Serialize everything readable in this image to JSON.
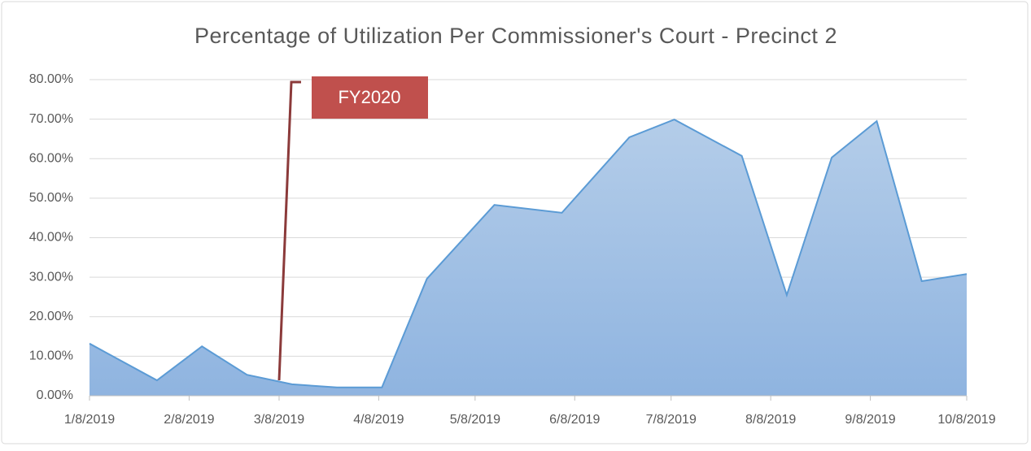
{
  "chart_data": {
    "type": "area",
    "title": "Percentage of Utilization Per Commissioner's Court - Precinct 2",
    "annotation": "FY2020",
    "x": [
      "2019-01-08",
      "2019-01-29",
      "2019-02-12",
      "2019-02-26",
      "2019-03-12",
      "2019-03-26",
      "2019-04-09",
      "2019-04-23",
      "2019-05-14",
      "2019-06-04",
      "2019-06-25",
      "2019-07-09",
      "2019-07-30",
      "2019-08-13",
      "2019-08-27",
      "2019-09-10",
      "2019-09-24",
      "2019-10-08"
    ],
    "values": [
      13.2,
      3.9,
      12.5,
      5.3,
      2.9,
      2.1,
      2.1,
      29.6,
      48.3,
      46.3,
      65.4,
      69.9,
      60.7,
      25.5,
      60.3,
      69.5,
      29.0,
      30.8
    ],
    "color": "#5b9bd5",
    "xlim": [
      "2019-01-08",
      "2019-10-08"
    ],
    "xticks": [
      {
        "value": "2019-01-08",
        "label": "1/8/2019"
      },
      {
        "value": "2019-02-08",
        "label": "2/8/2019"
      },
      {
        "value": "2019-03-08",
        "label": "3/8/2019"
      },
      {
        "value": "2019-04-08",
        "label": "4/8/2019"
      },
      {
        "value": "2019-05-08",
        "label": "5/8/2019"
      },
      {
        "value": "2019-06-08",
        "label": "6/8/2019"
      },
      {
        "value": "2019-07-08",
        "label": "7/8/2019"
      },
      {
        "value": "2019-08-08",
        "label": "8/8/2019"
      },
      {
        "value": "2019-09-08",
        "label": "9/8/2019"
      },
      {
        "value": "2019-10-08",
        "label": "10/8/2019"
      }
    ],
    "ylim": [
      0,
      80
    ],
    "yticks": [
      {
        "value": 0,
        "label": "0.00%"
      },
      {
        "value": 10,
        "label": "10.00%"
      },
      {
        "value": 20,
        "label": "20.00%"
      },
      {
        "value": 30,
        "label": "30.00%"
      },
      {
        "value": 40,
        "label": "40.00%"
      },
      {
        "value": 50,
        "label": "50.00%"
      },
      {
        "value": 60,
        "label": "60.00%"
      },
      {
        "value": 70,
        "label": "70.00%"
      },
      {
        "value": 80,
        "label": "80.00%"
      }
    ],
    "grid": true
  }
}
